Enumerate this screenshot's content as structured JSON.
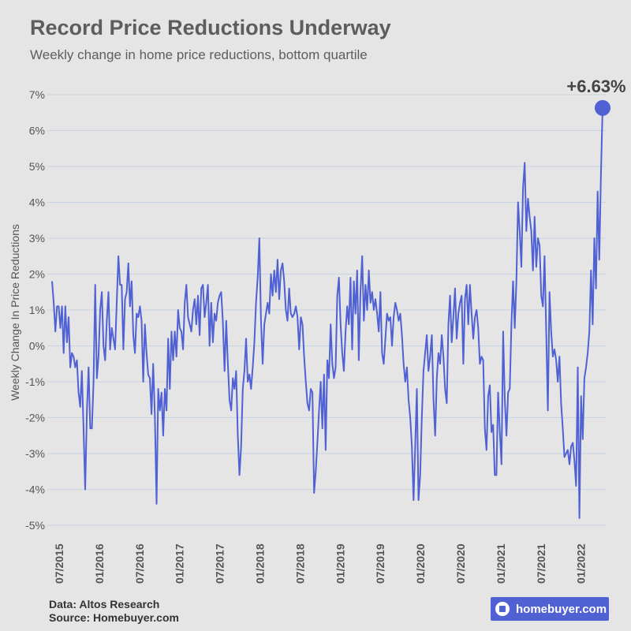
{
  "header": {
    "title": "Record Price Reductions Underway",
    "subtitle": "Weekly change in home price reductions, bottom quartile"
  },
  "footer": {
    "data_line": "Data: Altos Research",
    "source_line": "Source: Homebuyer.com"
  },
  "logo": {
    "text": "homebuyer.com"
  },
  "colors": {
    "line": "#5061d4",
    "background": "#e5e5e5",
    "grid": "#c9d4e2",
    "text": "#555555"
  },
  "chart_data": {
    "type": "line",
    "title": "Record Price Reductions Underway",
    "subtitle": "Weekly change in home price reductions, bottom quartile",
    "ylabel": "Weekly Change In Price Reductions",
    "xlabel": "",
    "ylim": [
      -5,
      7
    ],
    "y_ticks": [
      7,
      6,
      5,
      4,
      3,
      2,
      1,
      0,
      -1,
      -2,
      -3,
      -4,
      -5
    ],
    "y_tick_labels": [
      "7%",
      "6%",
      "5%",
      "4%",
      "3%",
      "2%",
      "1%",
      "0%",
      "-1%",
      "-2%",
      "-3%",
      "-4%",
      "-5%"
    ],
    "x_tick_labels": [
      "07/2015",
      "01/2016",
      "07/2016",
      "01/2017",
      "07/2017",
      "01/2018",
      "07/2018",
      "01/2019",
      "07/2019",
      "01/2020",
      "07/2020",
      "01/2021",
      "07/2021",
      "01/2022"
    ],
    "grid": true,
    "callout": {
      "label": "+6.63%",
      "value": 6.63
    },
    "series": [
      {
        "values": [
          1.8,
          1.2,
          0.4,
          1.1,
          1.1,
          0.5,
          1.1,
          -0.2,
          1.1,
          0.1,
          0.8,
          -0.6,
          -0.2,
          -0.3,
          -0.6,
          -0.4,
          -1.3,
          -1.7,
          -0.7,
          -2.3,
          -4.0,
          -1.8,
          -0.6,
          -2.3,
          -2.3,
          -1.0,
          1.7,
          -0.9,
          -0.3,
          1.0,
          1.5,
          0.0,
          -0.4,
          0.7,
          1.5,
          -0.1,
          0.5,
          0.2,
          -0.1,
          1.2,
          2.5,
          1.7,
          1.7,
          -0.1,
          1.3,
          1.5,
          2.3,
          1.1,
          1.8,
          0.3,
          -0.2,
          0.9,
          0.8,
          1.1,
          0.7,
          -1.0,
          0.6,
          -0.2,
          -0.8,
          -0.9,
          -1.9,
          -0.5,
          -1.9,
          -4.4,
          -1.2,
          -1.8,
          -1.3,
          -2.5,
          -1.2,
          -1.8,
          0.2,
          -1.2,
          0.4,
          -0.4,
          0.4,
          -0.3,
          1.0,
          0.5,
          0.4,
          -0.1,
          1.2,
          1.7,
          0.8,
          0.6,
          0.4,
          1.0,
          1.3,
          0.6,
          1.4,
          0.3,
          1.6,
          1.7,
          0.8,
          1.2,
          1.7,
          0.0,
          1.2,
          0.1,
          0.9,
          0.7,
          1.2,
          1.4,
          1.5,
          0.7,
          -0.7,
          0.7,
          -0.5,
          -1.5,
          -1.8,
          -0.9,
          -1.2,
          -0.7,
          -2.5,
          -3.6,
          -2.8,
          -1.2,
          -0.7,
          0.2,
          -1.0,
          -0.8,
          -1.2,
          -0.6,
          0.1,
          1.2,
          1.9,
          3.0,
          0.7,
          -0.5,
          0.6,
          0.9,
          1.2,
          0.9,
          2.0,
          1.4,
          2.1,
          1.5,
          2.4,
          1.3,
          2.1,
          2.3,
          1.8,
          1.0,
          0.7,
          1.6,
          0.9,
          0.8,
          0.9,
          1.1,
          0.8,
          -0.1,
          0.8,
          0.6,
          -0.3,
          -1.0,
          -1.6,
          -1.8,
          -1.2,
          -1.3,
          -4.1,
          -3.5,
          -2.7,
          -1.8,
          -1.0,
          -2.3,
          -0.8,
          -2.9,
          -0.4,
          -0.9,
          0.6,
          -0.5,
          -0.9,
          -0.6,
          1.4,
          1.9,
          0.6,
          -0.2,
          -0.7,
          0.4,
          1.1,
          0.6,
          1.9,
          -0.1,
          1.8,
          0.9,
          2.1,
          -0.4,
          1.5,
          2.5,
          0.7,
          1.7,
          1.0,
          2.1,
          1.2,
          1.5,
          1.0,
          1.3,
          0.9,
          0.4,
          1.5,
          -0.2,
          -0.5,
          0.2,
          0.9,
          0.7,
          0.8,
          0.0,
          0.8,
          1.2,
          1.0,
          0.7,
          0.9,
          0.3,
          -0.5,
          -1.0,
          -0.6,
          -1.5,
          -2.0,
          -2.8,
          -4.3,
          -2.8,
          -1.2,
          -4.3,
          -3.6,
          -2.0,
          -0.7,
          -0.2,
          0.3,
          -0.7,
          -0.3,
          0.3,
          -1.5,
          -2.5,
          -0.9,
          -0.2,
          -0.5,
          0.3,
          -0.3,
          -1.2,
          -1.6,
          0.6,
          1.4,
          0.1,
          0.8,
          1.6,
          0.2,
          0.9,
          1.2,
          1.4,
          -0.5,
          1.3,
          1.7,
          0.6,
          1.7,
          0.9,
          0.2,
          0.8,
          1.0,
          0.5,
          -0.5,
          -0.3,
          -0.4,
          -2.3,
          -2.9,
          -1.4,
          -1.1,
          -2.4,
          -2.2,
          -3.6,
          -3.6,
          -1.3,
          -2.4,
          -3.3,
          0.4,
          -1.5,
          -2.5,
          -1.3,
          -1.2,
          0.6,
          1.8,
          0.5,
          1.8,
          4.0,
          3.2,
          2.2,
          4.4,
          5.1,
          3.2,
          4.1,
          3.6,
          3.2,
          2.1,
          3.6,
          2.2,
          3.0,
          2.8,
          1.4,
          1.1,
          2.5,
          0.4,
          -1.8,
          1.5,
          0.4,
          -0.3,
          -0.1,
          -0.4,
          -1.0,
          -0.3,
          -1.6,
          -2.3,
          -3.1,
          -3.0,
          -2.9,
          -3.3,
          -2.8,
          -2.7,
          -3.2,
          -3.9,
          -0.6,
          -4.8,
          -1.4,
          -2.6,
          -0.9,
          -0.6,
          -0.2,
          0.4,
          2.1,
          0.6,
          3.0,
          1.6,
          4.3,
          2.4,
          4.8,
          6.63
        ]
      }
    ]
  }
}
